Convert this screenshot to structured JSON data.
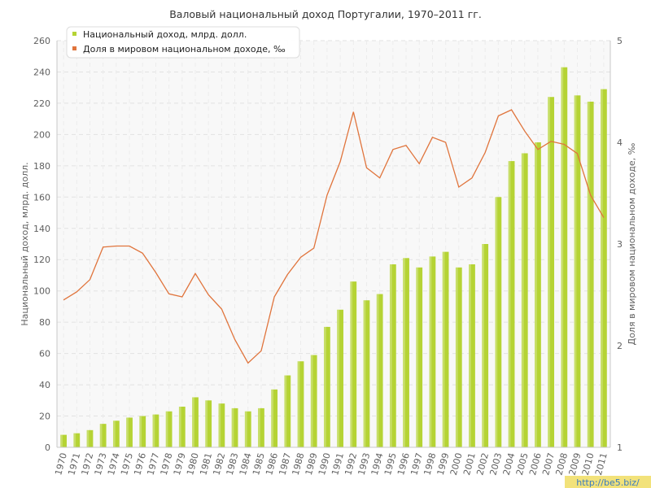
{
  "chart_data": {
    "type": "bar",
    "title": "Валовый национальный доход Португалии, 1970–2011 гг.",
    "categories": [
      "1970",
      "1971",
      "1972",
      "1973",
      "1974",
      "1975",
      "1976",
      "1977",
      "1978",
      "1979",
      "1980",
      "1981",
      "1982",
      "1983",
      "1984",
      "1985",
      "1986",
      "1987",
      "1988",
      "1989",
      "1990",
      "1991",
      "1992",
      "1993",
      "1994",
      "1995",
      "1996",
      "1997",
      "1998",
      "1999",
      "2000",
      "2001",
      "2002",
      "2003",
      "2004",
      "2005",
      "2006",
      "2007",
      "2008",
      "2009",
      "2010",
      "2011"
    ],
    "series": [
      {
        "name": "Национальный доход, млрд. долл.",
        "type": "bar",
        "axis": "left",
        "color": "#b5d334",
        "values": [
          8,
          9,
          11,
          15,
          17,
          19,
          20,
          21,
          23,
          26,
          32,
          30,
          28,
          25,
          23,
          25,
          37,
          46,
          55,
          59,
          77,
          88,
          106,
          94,
          98,
          117,
          121,
          115,
          122,
          125,
          115,
          117,
          130,
          160,
          183,
          188,
          195,
          224,
          243,
          225,
          221,
          229
        ]
      },
      {
        "name": "Доля в мировом национальном доходе, ‰",
        "type": "line",
        "axis": "right",
        "color": "#e0743c",
        "values": [
          2.45,
          2.53,
          2.65,
          2.97,
          2.98,
          2.98,
          2.91,
          2.72,
          2.51,
          2.48,
          2.71,
          2.5,
          2.36,
          2.06,
          1.83,
          1.95,
          2.48,
          2.7,
          2.87,
          2.96,
          3.48,
          3.81,
          4.3,
          3.75,
          3.65,
          3.93,
          3.97,
          3.79,
          4.05,
          4.0,
          3.56,
          3.65,
          3.9,
          4.26,
          4.32,
          4.11,
          3.93,
          4.01,
          3.98,
          3.89,
          3.48,
          3.26
        ]
      }
    ],
    "ylabel": "Национальный доход, млрд. долл.",
    "ylabel_right": "Доля в мировом национальном доходе, ‰",
    "ylim": [
      0,
      260
    ],
    "yticks": [
      0,
      20,
      40,
      60,
      80,
      100,
      120,
      140,
      160,
      180,
      200,
      220,
      240,
      260
    ],
    "ylim_right": [
      1,
      5
    ],
    "yticks_right": [
      1,
      2,
      3,
      4,
      5
    ],
    "grid": true,
    "legend_position": "top-left",
    "watermark": "http://be5.biz/"
  }
}
